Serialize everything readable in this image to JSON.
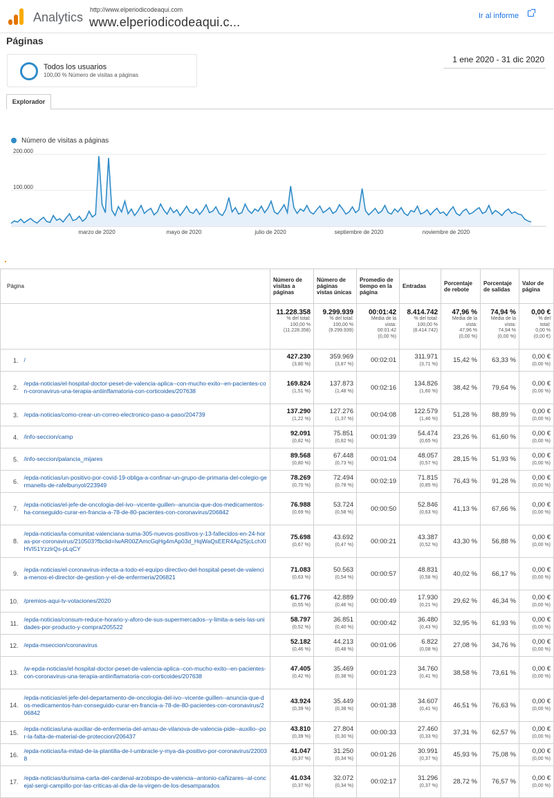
{
  "header": {
    "app_name": "Analytics",
    "property_url": "http://www.elperiodicodeaqui.com",
    "property_name": "www.elperiodicodeaqui.c...",
    "ir_informe": "Ir al informe",
    "logo_colors": [
      "#f9ab00",
      "#e37400",
      "#e37400"
    ]
  },
  "page_title": "Páginas",
  "segment": {
    "title": "Todos los usuarios",
    "subtitle": "100,00 % Número de visitas a páginas",
    "color": "#2e8bc8"
  },
  "date_range": "1 ene 2020 - 31 dic 2020",
  "tab_label": "Explorador",
  "chart_data": {
    "type": "area",
    "series": [
      {
        "name": "Número de visitas a páginas",
        "color": "#2e8bc8",
        "values": [
          8000,
          15000,
          12000,
          20000,
          10000,
          16000,
          22000,
          14000,
          9000,
          18000,
          25000,
          13000,
          11000,
          30000,
          17000,
          21000,
          12000,
          24000,
          35000,
          16000,
          19000,
          28000,
          14000,
          22000,
          42000,
          26000,
          33000,
          195000,
          60000,
          38000,
          190000,
          45000,
          30000,
          55000,
          40000,
          70000,
          35000,
          48000,
          30000,
          42000,
          58000,
          36000,
          44000,
          50000,
          32000,
          40000,
          62000,
          45000,
          34000,
          52000,
          38000,
          46000,
          30000,
          42000,
          56000,
          40000,
          36000,
          48000,
          33000,
          44000,
          60000,
          38000,
          42000,
          54000,
          36000,
          30000,
          46000,
          80000,
          40000,
          52000,
          34000,
          38000,
          62000,
          44000,
          36000,
          48000,
          42000,
          56000,
          38000,
          50000,
          70000,
          40000,
          34000,
          46000,
          60000,
          38000,
          112000,
          52000,
          36000,
          48000,
          42000,
          58000,
          40000,
          34000,
          46000,
          56000,
          38000,
          44000,
          52000,
          36000,
          42000,
          60000,
          48000,
          34000,
          40000,
          54000,
          38000,
          46000,
          105000,
          44000,
          32000,
          40000,
          50000,
          36000,
          42000,
          58000,
          38000,
          34000,
          48000,
          40000,
          52000,
          36000,
          30000,
          44000,
          40000,
          56000,
          34000,
          38000,
          46000,
          32000,
          42000,
          50000,
          36000,
          40000,
          30000,
          44000,
          54000,
          36000,
          30000,
          42000,
          48000,
          34000,
          38000,
          46000,
          52000,
          36000,
          40000,
          58000,
          34000,
          44000,
          38000,
          30000,
          42000,
          48000,
          36000,
          40000,
          34000,
          32000,
          20000,
          15000,
          12000
        ]
      }
    ],
    "ylim": [
      0,
      200000
    ],
    "y_ticks": [
      "200.000",
      "100.000"
    ],
    "x_labels": [
      "marzo de 2020",
      "mayo de 2020",
      "julio de 2020",
      "septiembre de 2020",
      "noviembre de 2020"
    ],
    "grid": true
  },
  "table": {
    "headers": [
      "Página",
      "Número de visitas a páginas",
      "Número de páginas vistas únicas",
      "Promedio de tiempo en la página",
      "Entradas",
      "Porcentaje de rebote",
      "Porcentaje de salidas",
      "Valor de página"
    ],
    "totals": [
      {
        "big": "11.228.358",
        "lines": [
          "% del total:",
          "100,00 %",
          "(11.228.358)"
        ]
      },
      {
        "big": "9.299.939",
        "lines": [
          "% del total:",
          "100,00 %",
          "(9.299.939)"
        ]
      },
      {
        "big": "00:01:42",
        "lines": [
          "Media de la",
          "vista:",
          "00:01:42",
          "(0,00 %)"
        ]
      },
      {
        "big": "8.414.742",
        "lines": [
          "% del total:",
          "100,00 %",
          "(8.414.742)"
        ]
      },
      {
        "big": "47,96 %",
        "lines": [
          "Media de la",
          "vista:",
          "47,96 %",
          "(0,00 %)"
        ]
      },
      {
        "big": "74,94 %",
        "lines": [
          "Media de la",
          "vista:",
          "74,94 %",
          "(0,00 %)"
        ]
      },
      {
        "big": "0,00 €",
        "lines": [
          "% del",
          "total:",
          "0,00 %",
          "(0,00 €)"
        ]
      }
    ],
    "rows": [
      {
        "n": "1.",
        "page": "/",
        "v": "427.230",
        "vp": "(3,80 %)",
        "u": "359.969",
        "up": "(3,87 %)",
        "t": "00:02:01",
        "e": "311.971",
        "ep": "(3,71 %)",
        "r": "15,42 %",
        "s": "63,33 %",
        "val": "0,00 €",
        "valp": "(0,00 %)"
      },
      {
        "n": "2.",
        "page": "/epda-noticias/el-hospital-doctor-peset-de-valencia-aplica--con-mucho-exito--en-pacientes-con-coronavirus-una-terapia-antiinflamatoria-con-corticoides/207638",
        "v": "169.824",
        "vp": "(1,51 %)",
        "u": "137.873",
        "up": "(1,48 %)",
        "t": "00:02:16",
        "e": "134.826",
        "ep": "(1,60 %)",
        "r": "38,42 %",
        "s": "79,64 %",
        "val": "0,00 €",
        "valp": "(0,00 %)"
      },
      {
        "n": "3.",
        "page": "/epda-noticias/como-crear-un-correo-electronico-paso-a-paso/204739",
        "v": "137.290",
        "vp": "(1,22 %)",
        "u": "127.276",
        "up": "(1,37 %)",
        "t": "00:04:08",
        "e": "122.579",
        "ep": "(1,46 %)",
        "r": "51,28 %",
        "s": "88,89 %",
        "val": "0,00 €",
        "valp": "(0,00 %)"
      },
      {
        "n": "4.",
        "page": "/info-seccion/camp",
        "v": "92.091",
        "vp": "(0,82 %)",
        "u": "75.851",
        "up": "(0,82 %)",
        "t": "00:01:39",
        "e": "54.474",
        "ep": "(0,65 %)",
        "r": "23,26 %",
        "s": "61,60 %",
        "val": "0,00 €",
        "valp": "(0,00 %)"
      },
      {
        "n": "5.",
        "page": "/info-seccion/palancia_mijares",
        "v": "89.568",
        "vp": "(0,80 %)",
        "u": "67.448",
        "up": "(0,73 %)",
        "t": "00:01:04",
        "e": "48.057",
        "ep": "(0,57 %)",
        "r": "28,15 %",
        "s": "51,93 %",
        "val": "0,00 €",
        "valp": "(0,00 %)"
      },
      {
        "n": "6.",
        "page": "/epda-noticias/un-positivo-por-covid-19-obliga-a-confinar-un-grupo-de-primaria-del-colegio-germanells-de-rafelbunyol/223949",
        "v": "78.269",
        "vp": "(0,70 %)",
        "u": "72.494",
        "up": "(0,78 %)",
        "t": "00:02:19",
        "e": "71.815",
        "ep": "(0,85 %)",
        "r": "76,43 %",
        "s": "91,28 %",
        "val": "0,00 €",
        "valp": "(0,00 %)"
      },
      {
        "n": "7.",
        "page": "/epda-noticias/el-jefe-de-oncologia-del-ivo--vicente-guillen--anuncia-que-dos-medicamentos-ha-conseguido-curar-en-francia-a-78-de-80-pacientes-con-coronavirus/206842",
        "v": "76.988",
        "vp": "(0,69 %)",
        "u": "53.724",
        "up": "(0,58 %)",
        "t": "00:00:50",
        "e": "52.846",
        "ep": "(0,63 %)",
        "r": "41,13 %",
        "s": "67,66 %",
        "val": "0,00 €",
        "valp": "(0,00 %)"
      },
      {
        "n": "8.",
        "page": "/epda-noticias/la-comunitat-valenciana-suma-305-nuevos-positivos-y-13-fallecidos-en-24-horas-por-coronavirus/210503?fbclid=IwAR00ZAmcGqHg4mAp03d_HqWaQsEER4Ap25jcLchXIHVI51YzzlrQs-pLqCY",
        "v": "75.698",
        "vp": "(0,67 %)",
        "u": "43.692",
        "up": "(0,47 %)",
        "t": "00:00:21",
        "e": "43.387",
        "ep": "(0,52 %)",
        "r": "43,30 %",
        "s": "56,88 %",
        "val": "0,00 €",
        "valp": "(0,00 %)"
      },
      {
        "n": "9.",
        "page": "/epda-noticias/el-coronavirus-infecta-a-todo-el-equipo-directivo-del-hospital-peset-de-valencia-menos-el-director-de-gestion-y-el-de-enfermeria/206821",
        "v": "71.083",
        "vp": "(0,63 %)",
        "u": "50.563",
        "up": "(0,54 %)",
        "t": "00:00:57",
        "e": "48.831",
        "ep": "(0,58 %)",
        "r": "40,02 %",
        "s": "66,17 %",
        "val": "0,00 €",
        "valp": "(0,00 %)"
      },
      {
        "n": "10.",
        "page": "/premios-aqui-tv-votaciones/2020",
        "v": "61.776",
        "vp": "(0,55 %)",
        "u": "42.889",
        "up": "(0,46 %)",
        "t": "00:00:49",
        "e": "17.930",
        "ep": "(0,21 %)",
        "r": "29,62 %",
        "s": "46,34 %",
        "val": "0,00 €",
        "valp": "(0,00 %)"
      },
      {
        "n": "11.",
        "page": "/epda-noticias/consum-reduce-horario-y-aforo-de-sus-supermercados--y-limita-a-seis-las-unidades-por-producto-y-compra/205522",
        "v": "58.797",
        "vp": "(0,52 %)",
        "u": "36.851",
        "up": "(0,40 %)",
        "t": "00:00:42",
        "e": "36.480",
        "ep": "(0,43 %)",
        "r": "32,95 %",
        "s": "61,93 %",
        "val": "0,00 €",
        "valp": "(0,00 %)"
      },
      {
        "n": "12.",
        "page": "/epda-mseccion/coronavirus",
        "v": "52.182",
        "vp": "(0,46 %)",
        "u": "44.213",
        "up": "(0,48 %)",
        "t": "00:01:06",
        "e": "6.822",
        "ep": "(0,08 %)",
        "r": "27,08 %",
        "s": "34,76 %",
        "val": "0,00 €",
        "valp": "(0,00 %)"
      },
      {
        "n": "13.",
        "page": "/w-epda-noticias/el-hospital-doctor-peset-de-valencia-aplica--con-mucho-exito--en-pacientes-con-coronavirus-una-terapia-antiinflamatoria-con-corticoides/207638",
        "v": "47.405",
        "vp": "(0,42 %)",
        "u": "35.469",
        "up": "(0,38 %)",
        "t": "00:01:23",
        "e": "34.760",
        "ep": "(0,41 %)",
        "r": "38,58 %",
        "s": "73,61 %",
        "val": "0,00 €",
        "valp": "(0,00 %)"
      },
      {
        "n": "14.",
        "page": "/epda-noticias/el-jefe-del-departamento-de-oncologia-del-ivo--vicente-guillen--anuncia-que-dos-medicamentos-han-conseguido-curar-en-francia-a-78-de-80-pacientes-con-coronavirus/206842",
        "v": "43.924",
        "vp": "(0,39 %)",
        "u": "35.449",
        "up": "(0,38 %)",
        "t": "00:01:38",
        "e": "34.607",
        "ep": "(0,41 %)",
        "r": "46,51 %",
        "s": "76,63 %",
        "val": "0,00 €",
        "valp": "(0,00 %)"
      },
      {
        "n": "15.",
        "page": "/epda-noticias/una-auxiliar-de-enfermeria-del-arnau-de-vilanova-de-valencia-pide--auxilio--por-la-falta-de-material-de-proteccion/206437",
        "v": "43.810",
        "vp": "(0,39 %)",
        "u": "27.804",
        "up": "(0,30 %)",
        "t": "00:00:33",
        "e": "27.460",
        "ep": "(0,33 %)",
        "r": "37,31 %",
        "s": "62,57 %",
        "val": "0,00 €",
        "valp": "(0,00 %)"
      },
      {
        "n": "16.",
        "page": "/epda-noticias/la-mitad-de-la-plantilla-de-l-umbracle-y-mya-da-positivo-por-coronavirus/220038",
        "v": "41.047",
        "vp": "(0,37 %)",
        "u": "31.250",
        "up": "(0,34 %)",
        "t": "00:01:26",
        "e": "30.991",
        "ep": "(0,37 %)",
        "r": "45,93 %",
        "s": "75,08 %",
        "val": "0,00 €",
        "valp": "(0,00 %)"
      },
      {
        "n": "17.",
        "page": "/epda-noticias/durisima-carta-del-cardenal-arzobispo-de-valencia--antonio-cañizares--al-concejal-sergi-campillo-por-las-criticas-al-dia-de-la-virgen-de-los-desamparados",
        "v": "41.034",
        "vp": "(0,37 %)",
        "u": "32.072",
        "up": "(0,34 %)",
        "t": "00:02:17",
        "e": "31.296",
        "ep": "(0,37 %)",
        "r": "28,72 %",
        "s": "76,57 %",
        "val": "0,00 €",
        "valp": "(0,00 %)"
      }
    ]
  }
}
